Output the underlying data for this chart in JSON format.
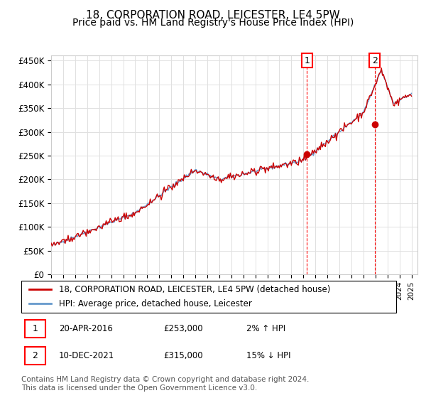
{
  "title": "18, CORPORATION ROAD, LEICESTER, LE4 5PW",
  "subtitle": "Price paid vs. HM Land Registry's House Price Index (HPI)",
  "xlabel": "",
  "ylabel": "",
  "ylim": [
    0,
    460000
  ],
  "yticks": [
    0,
    50000,
    100000,
    150000,
    200000,
    250000,
    300000,
    350000,
    400000,
    450000
  ],
  "ytick_labels": [
    "£0",
    "£50K",
    "£100K",
    "£150K",
    "£200K",
    "£250K",
    "£300K",
    "£350K",
    "£400K",
    "£450K"
  ],
  "background_color": "#ffffff",
  "grid_color": "#e0e0e0",
  "hpi_color": "#6699cc",
  "price_color": "#cc0000",
  "sale1_date": 2016.3,
  "sale1_price": 253000,
  "sale1_label": "1",
  "sale2_date": 2021.94,
  "sale2_price": 315000,
  "sale2_label": "2",
  "legend_label1": "18, CORPORATION ROAD, LEICESTER, LE4 5PW (detached house)",
  "legend_label2": "HPI: Average price, detached house, Leicester",
  "annotation1": "1    20-APR-2016         £253,000         2% ↑ HPI",
  "annotation2": "2    10-DEC-2021         £315,000         15% ↓ HPI",
  "footer": "Contains HM Land Registry data © Crown copyright and database right 2024.\nThis data is licensed under the Open Government Licence v3.0.",
  "title_fontsize": 11,
  "subtitle_fontsize": 10,
  "tick_fontsize": 8.5,
  "legend_fontsize": 8.5,
  "annotation_fontsize": 8.5,
  "footer_fontsize": 7.5
}
